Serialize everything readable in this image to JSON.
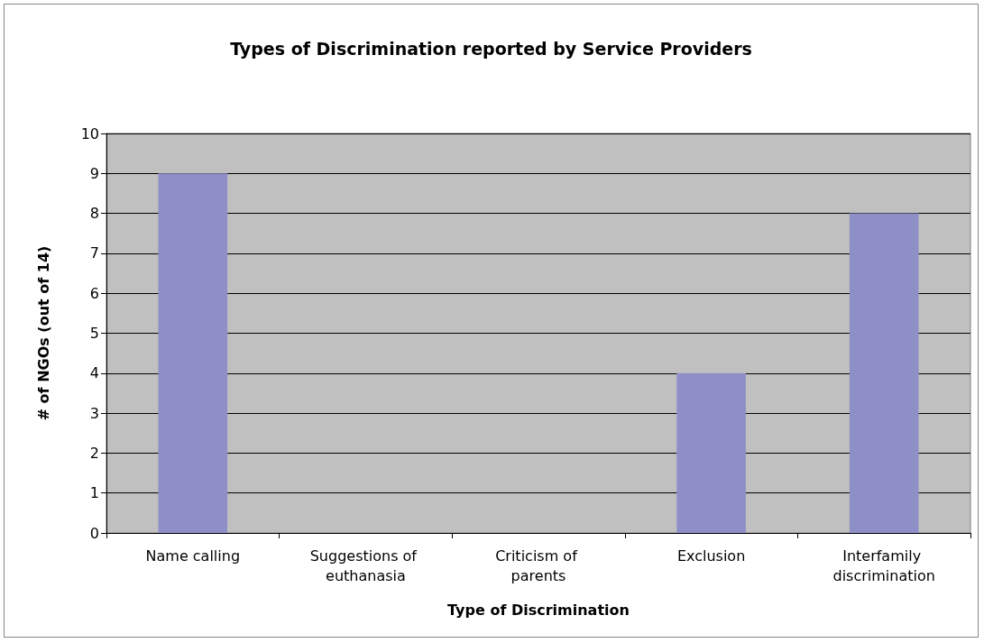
{
  "chart_data": {
    "type": "bar",
    "title": "Types of Discrimination reported by Service Providers",
    "xlabel": "Type of Discrimination",
    "ylabel": "# of NGOs (out of 14)",
    "categories": [
      "Name calling",
      "Suggestions of euthanasia",
      "Criticism of parents",
      "Exclusion",
      "Interfamily discrimination"
    ],
    "values": [
      9,
      0,
      0,
      4,
      8
    ],
    "color": "#8f8fc8",
    "ylim": [
      0,
      10
    ],
    "yticks": [
      0,
      1,
      2,
      3,
      4,
      5,
      6,
      7,
      8,
      9,
      10
    ],
    "grid": "y"
  }
}
